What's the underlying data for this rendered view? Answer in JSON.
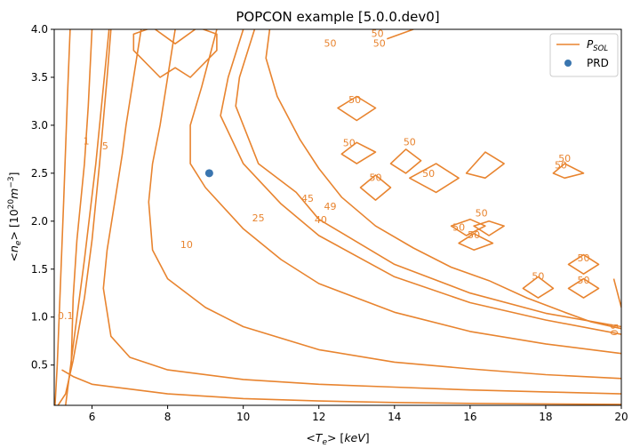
{
  "chart_data": {
    "type": "contour",
    "title": "POPCON example [5.0.0.dev0]",
    "xlabel": "<T_e> [keV]",
    "ylabel": "<n_e> [10^20 m^-3]",
    "xlim": [
      5,
      20
    ],
    "ylim": [
      0.08,
      4.0
    ],
    "x_ticks": [
      6,
      8,
      10,
      12,
      14,
      16,
      18,
      20
    ],
    "y_ticks": [
      0.5,
      1.0,
      1.5,
      2.0,
      2.5,
      3.0,
      3.5,
      4.0
    ],
    "x_tick_labels": [
      "6",
      "8",
      "10",
      "12",
      "14",
      "16",
      "18",
      "20"
    ],
    "y_tick_labels": [
      "0.5",
      "1.0",
      "1.5",
      "2.0",
      "2.5",
      "3.0",
      "3.5",
      "4.0"
    ],
    "grid": false,
    "legend_position": "top-right",
    "contour_color": "#e8842f",
    "point_color": "#3a75af",
    "series": [
      {
        "name": "P_SOL",
        "kind": "contour"
      },
      {
        "name": "PRD",
        "kind": "point"
      }
    ],
    "contour_levels": [
      "0.1",
      "1",
      "5",
      "10",
      "25",
      "40",
      "45",
      "49",
      "50"
    ],
    "contours": [
      {
        "level": "0.1",
        "points": [
          [
            5.02,
            0.08
          ],
          [
            5.08,
            0.5
          ],
          [
            5.15,
            1.2
          ],
          [
            5.25,
            2.2
          ],
          [
            5.35,
            3.3
          ],
          [
            5.42,
            4.0
          ]
        ],
        "label_at": [
          5.3,
          0.98
        ]
      },
      {
        "level": "",
        "points": [
          [
            5.3,
            0.08
          ],
          [
            5.5,
            0.7
          ],
          [
            5.8,
            1.6
          ],
          [
            6.1,
            2.6
          ],
          [
            6.3,
            3.4
          ],
          [
            6.45,
            4.0
          ]
        ]
      },
      {
        "level": "",
        "points": [
          [
            5.1,
            0.08
          ],
          [
            5.3,
            0.2
          ],
          [
            5.5,
            0.55
          ],
          [
            5.8,
            1.2
          ],
          [
            6.0,
            1.8
          ],
          [
            6.2,
            2.6
          ],
          [
            6.4,
            3.5
          ],
          [
            6.5,
            4.0
          ]
        ]
      },
      {
        "level": "",
        "points": [
          [
            5.2,
            0.45
          ],
          [
            5.5,
            0.38
          ],
          [
            6.0,
            0.3
          ],
          [
            7.0,
            0.25
          ],
          [
            8.0,
            0.2
          ],
          [
            10.0,
            0.15
          ],
          [
            12.0,
            0.125
          ],
          [
            14.0,
            0.11
          ],
          [
            16.0,
            0.1
          ],
          [
            18.0,
            0.095
          ],
          [
            20.0,
            0.09
          ]
        ]
      },
      {
        "level": "1",
        "points": [
          [
            6.0,
            4.0
          ],
          [
            5.9,
            3.2
          ],
          [
            5.8,
            2.6
          ],
          [
            5.6,
            1.8
          ],
          [
            5.5,
            1.2
          ],
          [
            5.45,
            0.5
          ]
        ],
        "label_at": [
          5.85,
          2.8
        ]
      },
      {
        "level": "5",
        "points": [
          [
            7.3,
            4.0
          ],
          [
            7.1,
            3.5
          ],
          [
            6.9,
            3.0
          ],
          [
            6.8,
            2.7
          ],
          [
            6.6,
            2.2
          ],
          [
            6.4,
            1.7
          ],
          [
            6.3,
            1.3
          ],
          [
            6.5,
            0.8
          ],
          [
            7.0,
            0.58
          ],
          [
            8.0,
            0.45
          ],
          [
            10.0,
            0.35
          ],
          [
            12.0,
            0.3
          ],
          [
            14.0,
            0.27
          ],
          [
            16.0,
            0.24
          ],
          [
            18.0,
            0.22
          ],
          [
            20.0,
            0.2
          ]
        ],
        "label_at": [
          6.35,
          2.75
        ]
      },
      {
        "level": "10",
        "points": [
          [
            8.2,
            4.0
          ],
          [
            8.0,
            3.5
          ],
          [
            7.8,
            3.0
          ],
          [
            7.6,
            2.6
          ],
          [
            7.5,
            2.2
          ],
          [
            7.6,
            1.7
          ],
          [
            8.0,
            1.4
          ],
          [
            9.0,
            1.1
          ],
          [
            10.0,
            0.9
          ],
          [
            12.0,
            0.66
          ],
          [
            14.0,
            0.53
          ],
          [
            16.0,
            0.46
          ],
          [
            18.0,
            0.4
          ],
          [
            20.0,
            0.36
          ]
        ],
        "label_at": [
          8.5,
          1.72
        ]
      },
      {
        "level": "25",
        "points": [
          [
            9.3,
            4.0
          ],
          [
            8.9,
            3.4
          ],
          [
            8.6,
            3.0
          ],
          [
            8.6,
            2.6
          ],
          [
            9.0,
            2.35
          ],
          [
            10.0,
            1.92
          ],
          [
            11.0,
            1.6
          ],
          [
            12.0,
            1.35
          ],
          [
            14.0,
            1.05
          ],
          [
            16.0,
            0.85
          ],
          [
            18.0,
            0.72
          ],
          [
            20.0,
            0.62
          ]
        ],
        "label_at": [
          10.4,
          2.0
        ]
      },
      {
        "level": "40",
        "points": [
          [
            10.0,
            4.0
          ],
          [
            9.6,
            3.5
          ],
          [
            9.4,
            3.1
          ],
          [
            10.0,
            2.6
          ],
          [
            11.0,
            2.18
          ],
          [
            12.0,
            1.85
          ],
          [
            14.0,
            1.42
          ],
          [
            16.0,
            1.15
          ],
          [
            18.0,
            0.97
          ],
          [
            20.0,
            0.82
          ]
        ],
        "label_at": [
          12.05,
          1.98
        ]
      },
      {
        "level": "45",
        "points": [
          [
            10.3,
            4.0
          ],
          [
            9.9,
            3.5
          ],
          [
            9.8,
            3.2
          ],
          [
            10.4,
            2.6
          ],
          [
            11.4,
            2.3
          ],
          [
            12.0,
            2.02
          ],
          [
            14.0,
            1.55
          ],
          [
            16.0,
            1.25
          ],
          [
            18.0,
            1.04
          ],
          [
            20.0,
            0.9
          ]
        ],
        "label_at": [
          11.7,
          2.2
        ]
      },
      {
        "level": "49",
        "points": [
          [
            10.7,
            4.0
          ],
          [
            10.6,
            3.7
          ],
          [
            10.9,
            3.3
          ],
          [
            11.5,
            2.85
          ],
          [
            12.0,
            2.55
          ],
          [
            12.6,
            2.25
          ],
          [
            13.5,
            1.95
          ],
          [
            14.5,
            1.72
          ],
          [
            15.5,
            1.52
          ],
          [
            16.5,
            1.38
          ],
          [
            17.5,
            1.2
          ],
          [
            18.5,
            1.05
          ],
          [
            19.2,
            0.95
          ],
          [
            20.0,
            0.88
          ]
        ],
        "label_at": [
          12.3,
          2.12
        ]
      },
      {
        "level": "50",
        "points": [
          [
            13.8,
            3.9
          ],
          [
            14.5,
            4.0
          ]
        ],
        "label_at": [
          13.55,
          3.92
        ]
      },
      {
        "level": "50",
        "points": [
          [
            19.8,
            1.4
          ],
          [
            20.0,
            1.1
          ]
        ],
        "label_at": [
          19.72,
          0.87
        ],
        "vertical_label": true
      },
      {
        "level": "50",
        "closed": true,
        "points": [
          [
            7.1,
            3.78
          ],
          [
            7.8,
            3.5
          ],
          [
            8.2,
            3.6
          ],
          [
            8.6,
            3.5
          ],
          [
            9.3,
            3.78
          ],
          [
            9.3,
            3.95
          ],
          [
            8.8,
            4.02
          ],
          [
            8.2,
            3.85
          ],
          [
            7.6,
            4.02
          ],
          [
            7.1,
            3.95
          ]
        ],
        "labels_at": [
          [
            12.3,
            3.82
          ],
          [
            13.6,
            3.82
          ]
        ]
      },
      {
        "level": "50",
        "closed": true,
        "points": [
          [
            12.5,
            3.18
          ],
          [
            13.0,
            3.05
          ],
          [
            13.5,
            3.18
          ],
          [
            13.0,
            3.3
          ]
        ],
        "label_at": [
          12.95,
          3.23
        ]
      },
      {
        "level": "50",
        "closed": true,
        "points": [
          [
            12.6,
            2.7
          ],
          [
            13.0,
            2.6
          ],
          [
            13.5,
            2.72
          ],
          [
            13.0,
            2.82
          ]
        ],
        "label_at": [
          12.8,
          2.78
        ]
      },
      {
        "level": "50",
        "closed": true,
        "points": [
          [
            13.9,
            2.6
          ],
          [
            14.3,
            2.5
          ],
          [
            14.7,
            2.63
          ],
          [
            14.3,
            2.75
          ]
        ],
        "label_at": [
          14.4,
          2.79
        ]
      },
      {
        "level": "50",
        "closed": true,
        "points": [
          [
            14.4,
            2.45
          ],
          [
            15.1,
            2.3
          ],
          [
            15.7,
            2.45
          ],
          [
            15.1,
            2.6
          ]
        ],
        "label_at": [
          14.9,
          2.46
        ]
      },
      {
        "level": "50",
        "closed": true,
        "points": [
          [
            13.1,
            2.35
          ],
          [
            13.5,
            2.22
          ],
          [
            13.9,
            2.35
          ],
          [
            13.5,
            2.48
          ]
        ],
        "label_at": [
          13.5,
          2.42
        ]
      },
      {
        "level": "50",
        "closed": true,
        "points": [
          [
            15.9,
            2.5
          ],
          [
            16.4,
            2.45
          ],
          [
            16.9,
            2.6
          ],
          [
            16.4,
            2.72
          ]
        ],
        "label_at": [
          18.4,
          2.55
        ]
      },
      {
        "level": "50",
        "closed": true,
        "points": [
          [
            16.1,
            1.95
          ],
          [
            16.5,
            2.0
          ],
          [
            16.9,
            1.95
          ],
          [
            16.5,
            1.85
          ]
        ],
        "label_at": [
          16.3,
          2.05
        ]
      },
      {
        "level": "50",
        "closed": true,
        "points": [
          [
            15.5,
            1.95
          ],
          [
            15.9,
            1.85
          ],
          [
            16.4,
            1.95
          ],
          [
            16.0,
            2.02
          ]
        ],
        "label_at": [
          15.7,
          1.9
        ]
      },
      {
        "level": "50",
        "closed": true,
        "points": [
          [
            15.7,
            1.77
          ],
          [
            16.1,
            1.7
          ],
          [
            16.6,
            1.77
          ],
          [
            16.1,
            1.87
          ]
        ],
        "label_at": [
          16.1,
          1.82
        ]
      },
      {
        "level": "50",
        "closed": true,
        "points": [
          [
            18.2,
            2.5
          ],
          [
            18.5,
            2.45
          ],
          [
            19.0,
            2.5
          ],
          [
            18.5,
            2.6
          ]
        ],
        "label_at": [
          18.5,
          2.62
        ]
      },
      {
        "level": "50",
        "closed": true,
        "points": [
          [
            18.6,
            1.55
          ],
          [
            19.0,
            1.45
          ],
          [
            19.4,
            1.55
          ],
          [
            19.0,
            1.65
          ]
        ],
        "label_at": [
          19.0,
          1.58
        ]
      },
      {
        "level": "50",
        "closed": true,
        "points": [
          [
            18.6,
            1.3
          ],
          [
            19.0,
            1.2
          ],
          [
            19.4,
            1.3
          ],
          [
            19.0,
            1.4
          ]
        ],
        "label_at": [
          19.0,
          1.35
        ]
      },
      {
        "level": "50",
        "closed": true,
        "points": [
          [
            17.4,
            1.3
          ],
          [
            17.8,
            1.2
          ],
          [
            18.2,
            1.3
          ],
          [
            17.8,
            1.42
          ]
        ],
        "label_at": [
          17.8,
          1.39
        ]
      }
    ],
    "point": {
      "name": "PRD",
      "x": 9.1,
      "y": 2.5
    }
  }
}
